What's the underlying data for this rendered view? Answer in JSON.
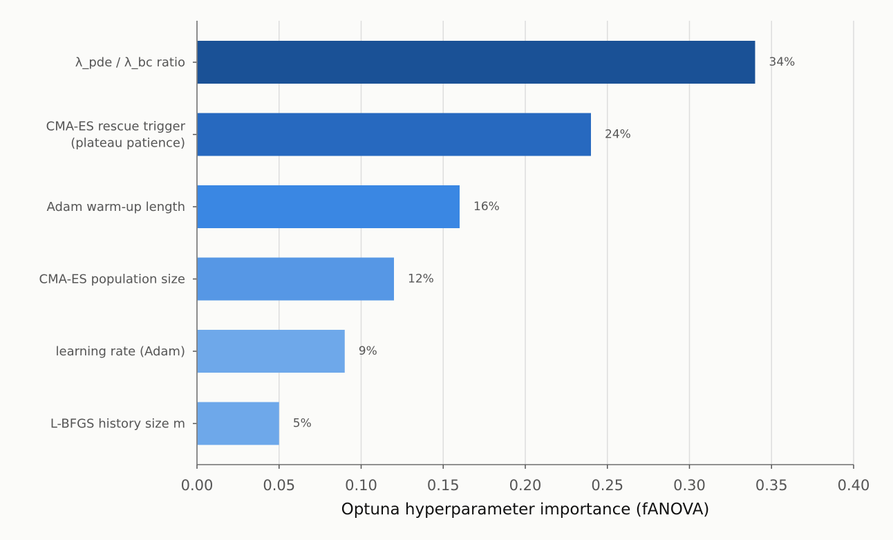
{
  "chart_data": {
    "type": "bar",
    "orientation": "horizontal",
    "title": "",
    "xlabel": "Optuna hyperparameter importance (fANOVA)",
    "ylabel": "",
    "xlim": [
      0,
      0.4
    ],
    "xticks": [
      0.0,
      0.05,
      0.1,
      0.15,
      0.2,
      0.25,
      0.3,
      0.35,
      0.4
    ],
    "xtick_labels": [
      "0.00",
      "0.05",
      "0.10",
      "0.15",
      "0.20",
      "0.25",
      "0.30",
      "0.35",
      "0.40"
    ],
    "grid": "vertical",
    "categories": [
      [
        "λ_pde / λ_bc  ratio"
      ],
      [
        "CMA-ES rescue trigger",
        "(plateau patience)"
      ],
      [
        "Adam warm-up length"
      ],
      [
        "CMA-ES population size"
      ],
      [
        "learning rate (Adam)"
      ],
      [
        "L-BFGS history size  m"
      ]
    ],
    "values": [
      0.34,
      0.24,
      0.16,
      0.12,
      0.09,
      0.05
    ],
    "value_labels": [
      "34%",
      "24%",
      "16%",
      "12%",
      "9%",
      "5%"
    ],
    "colors": [
      "#1a5196",
      "#2769bf",
      "#3a87e3",
      "#5697e5",
      "#6ea8ea",
      "#6ea8ea"
    ]
  }
}
